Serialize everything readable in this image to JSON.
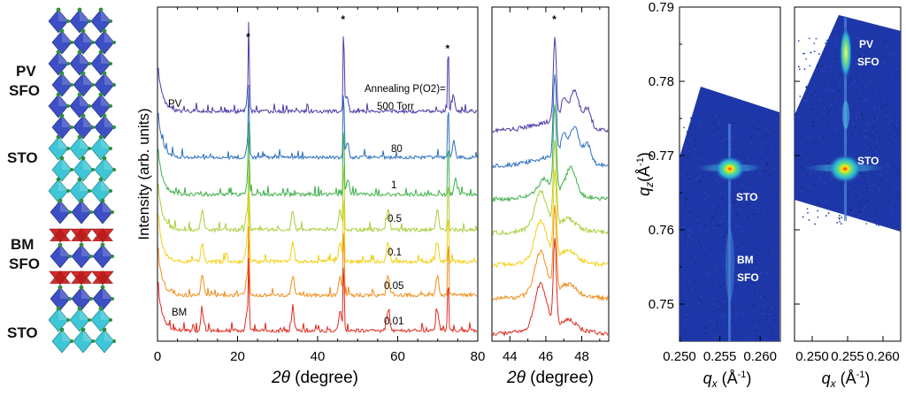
{
  "structure_labels": {
    "pv": "PV",
    "sfo_top": "SFO",
    "sto_top": "STO",
    "bm": "BM",
    "sfo_bottom": "SFO",
    "sto_bottom": "STO"
  },
  "colors": {
    "octahedron_blue": "#3d4fc4",
    "octahedron_cyan": "#3fc6d6",
    "tetrahedron_red": "#d42a2a",
    "oxygen_green": "#2f8f3a",
    "map_background": "#1a2f9c"
  },
  "chart_data": [
    {
      "type": "line",
      "xlabel": "2θ (degree)",
      "ylabel": "Intensity (arb. units)",
      "xlim": [
        0,
        80
      ],
      "xticks": [
        "0",
        "20",
        "40",
        "60",
        "80"
      ],
      "annotation": "Annealing P(O2)= 500 Torr",
      "peak_markers": [
        "*",
        "*",
        "*"
      ],
      "peak_positions": [
        22.8,
        46.5,
        72.6
      ],
      "series": [
        {
          "name": "PV",
          "label": "500 Torr",
          "color": "#4b3aa6",
          "phase": "PV",
          "film_peaks": [
            22.6,
            47.3,
            73.9
          ]
        },
        {
          "name": "80",
          "label": "80",
          "color": "#2c6fbf",
          "phase": "PV",
          "film_peaks": [
            22.6,
            47.4,
            74.0
          ]
        },
        {
          "name": "1",
          "label": "1",
          "color": "#3db04a",
          "phase": "mixed",
          "film_peaks": [
            22.6,
            47.6,
            74.4
          ]
        },
        {
          "name": "0.5",
          "label": "0.5",
          "color": "#a8cf3a",
          "phase": "BM",
          "film_peaks": [
            11.2,
            22.4,
            33.8,
            45.6,
            57.6,
            69.9
          ]
        },
        {
          "name": "0.1",
          "label": "0.1",
          "color": "#f2cf0f",
          "phase": "BM",
          "film_peaks": [
            11.2,
            22.4,
            33.8,
            45.6,
            57.6,
            69.9
          ]
        },
        {
          "name": "0.05",
          "label": "0.05",
          "color": "#f08c1a",
          "phase": "BM",
          "film_peaks": [
            11.2,
            22.4,
            33.8,
            45.6,
            57.6,
            69.9
          ]
        },
        {
          "name": "BM",
          "label": "0.01",
          "color": "#e02a1e",
          "phase": "BM",
          "film_peaks": [
            11.2,
            22.4,
            33.8,
            45.6,
            57.6,
            69.9
          ]
        }
      ]
    },
    {
      "type": "line",
      "xlabel": "2θ (degree)",
      "xlim": [
        43,
        49.5
      ],
      "xticks": [
        "44",
        "46",
        "48"
      ],
      "peak_markers": [
        "*"
      ],
      "peak_positions": [
        46.5
      ]
    },
    {
      "type": "heatmap",
      "ylabel": "q_z (Å⁻¹)",
      "xlabel": "q_x (Å⁻¹)",
      "ylim": [
        0.745,
        0.79
      ],
      "xlim": [
        0.25,
        0.2625
      ],
      "yticks": [
        "0.75",
        "0.76",
        "0.77",
        "0.78",
        "0.79"
      ],
      "xticks": [
        "0.250",
        "0.255",
        "0.260"
      ],
      "annotations": [
        "STO",
        "BM",
        "SFO"
      ]
    },
    {
      "type": "heatmap",
      "xlabel": "q_x (Å⁻¹)",
      "xlim": [
        0.2475,
        0.2625
      ],
      "xticks": [
        "0.250",
        "0.255",
        "0.260"
      ],
      "annotations": [
        "PV",
        "SFO",
        "STO"
      ]
    }
  ]
}
